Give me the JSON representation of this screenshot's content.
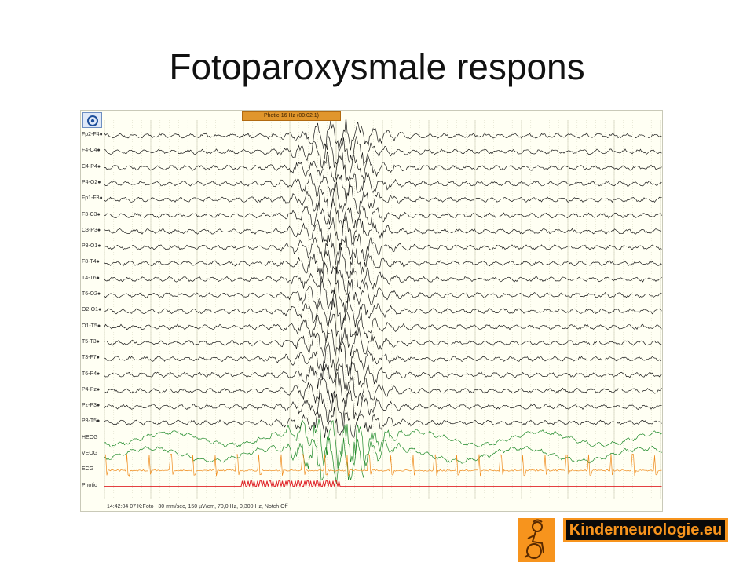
{
  "slide": {
    "title": "Fotoparoxysmale respons"
  },
  "eeg": {
    "marker_label": "Photic-16 Hz (00:02.1)",
    "status_text": "14:42:04 07 K:Foto , 30 mm/sec, 150 µV/cm, 70,0 Hz, 0,300 Hz, Notch Off",
    "channels": [
      "Fp2-F4",
      "F4-C4",
      "C4-P4",
      "P4-O2",
      "Fp1-F3",
      "F3-C3",
      "C3-P3",
      "P3-O1",
      "F8-T4",
      "T4-T6",
      "T6-O2",
      "O2-O1",
      "O1-T5",
      "T5-T3",
      "T3-F7",
      "T6-P4",
      "P4-Pz",
      "Pz-P3",
      "P3-T5",
      "HEOG",
      "VEOG",
      "ECG",
      "Photic"
    ],
    "colors": {
      "eeg": "#1a1a1a",
      "eog": "#1f8a2a",
      "ecg": "#ef8a1a",
      "photic": "#e0262a",
      "grid": "#c9c9b0"
    },
    "button_icon": "target-icon"
  },
  "branding": {
    "site": "Kinderneurologie.eu",
    "logo_icon": "wheelchair-child-logo"
  }
}
